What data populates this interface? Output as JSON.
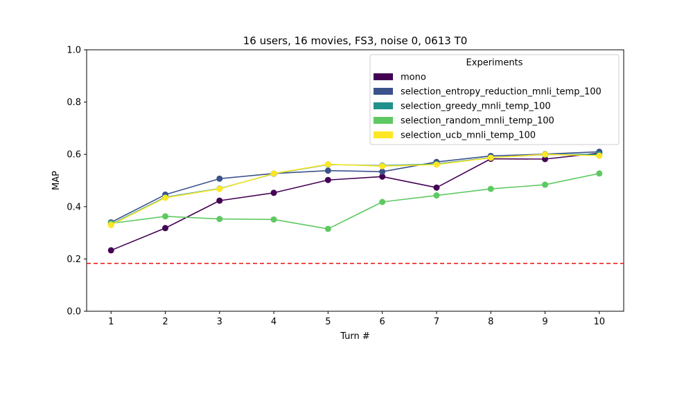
{
  "chart_data": {
    "type": "line",
    "title": "16 users, 16 movies, FS3, noise 0, 0613 T0",
    "xlabel": "Turn #",
    "ylabel": "MAP",
    "xlim": [
      0.55,
      10.45
    ],
    "ylim": [
      0.0,
      1.0
    ],
    "x": [
      1,
      2,
      3,
      4,
      5,
      6,
      7,
      8,
      9,
      10
    ],
    "x_ticks": [
      "1",
      "2",
      "3",
      "4",
      "5",
      "6",
      "7",
      "8",
      "9",
      "10"
    ],
    "y_ticks": [
      "0.0",
      "0.2",
      "0.4",
      "0.6",
      "0.8",
      "1.0"
    ],
    "y_tick_values": [
      0.0,
      0.2,
      0.4,
      0.6,
      0.8,
      1.0
    ],
    "grid": false,
    "legend": {
      "title": "Experiments",
      "placement": "top-right"
    },
    "baseline": {
      "value": 0.183,
      "color": "#e8241a",
      "style": "dashed"
    },
    "series": [
      {
        "name": "mono",
        "color": "#440154",
        "values": [
          0.233,
          0.318,
          0.423,
          0.453,
          0.502,
          0.515,
          0.473,
          0.583,
          0.582,
          0.605
        ]
      },
      {
        "name": "selection_entropy_reduction_mnli_temp_100",
        "color": "#3b528b",
        "values": [
          0.34,
          0.446,
          0.507,
          0.527,
          0.538,
          0.534,
          0.571,
          0.594,
          0.601,
          0.61
        ]
      },
      {
        "name": "selection_greedy_mnli_temp_100",
        "color": "#21918c",
        "values": [
          0.332,
          0.436,
          0.469,
          0.526,
          0.561,
          0.557,
          0.563,
          0.588,
          0.599,
          0.6
        ]
      },
      {
        "name": "selection_random_mnli_temp_100",
        "color": "#5ec962",
        "values": [
          0.336,
          0.363,
          0.353,
          0.351,
          0.315,
          0.418,
          0.443,
          0.468,
          0.484,
          0.527
        ]
      },
      {
        "name": "selection_ucb_mnli_temp_100",
        "color": "#fde725",
        "values": [
          0.33,
          0.434,
          0.468,
          0.527,
          0.562,
          0.555,
          0.561,
          0.587,
          0.6,
          0.595
        ]
      }
    ]
  }
}
